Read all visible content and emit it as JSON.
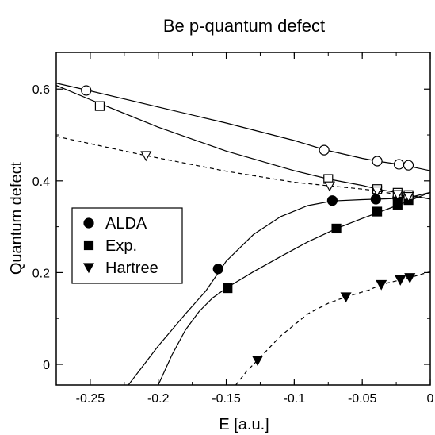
{
  "chart_data": {
    "type": "scatter",
    "title": "Be p-quantum defect",
    "xlabel": "E [a.u.]",
    "ylabel": "Quantum defect",
    "xlim": [
      -0.275,
      0.0
    ],
    "ylim": [
      -0.045,
      0.68
    ],
    "xticks": [
      -0.25,
      -0.2,
      -0.15,
      -0.1,
      -0.05,
      0
    ],
    "xtick_labels": [
      "-0.25",
      "-0.2",
      "-0.15",
      "-0.1",
      "-0.05",
      "0"
    ],
    "yticks": [
      0,
      0.2,
      0.4,
      0.6
    ],
    "ytick_labels": [
      "0",
      "0.2",
      "0.4",
      "0.6"
    ],
    "grid": false,
    "legend": {
      "position": "center-left",
      "entries": [
        {
          "label": "ALDA",
          "marker": "circle"
        },
        {
          "label": "Exp.",
          "marker": "square"
        },
        {
          "label": "Hartree",
          "marker": "triangle-down"
        }
      ]
    },
    "series": [
      {
        "name": "ALDA",
        "marker": "circle",
        "filled": true,
        "line": "solid",
        "x": [
          -0.156,
          -0.072,
          -0.04,
          -0.024,
          -0.016
        ],
        "y": [
          0.208,
          0.357,
          0.36,
          0.363,
          0.365
        ],
        "fit_x": [
          -0.222,
          -0.2,
          -0.18,
          -0.165,
          -0.15,
          -0.13,
          -0.11,
          -0.09,
          -0.072,
          -0.05,
          -0.03,
          -0.015,
          0.0
        ],
        "fit_y": [
          -0.045,
          0.04,
          0.11,
          0.16,
          0.225,
          0.283,
          0.322,
          0.346,
          0.356,
          0.359,
          0.361,
          0.364,
          0.375
        ]
      },
      {
        "name": "Exp.",
        "marker": "square",
        "filled": true,
        "line": "solid",
        "x": [
          -0.149,
          -0.069,
          -0.039,
          -0.024,
          -0.016
        ],
        "y": [
          0.166,
          0.296,
          0.333,
          0.348,
          0.358
        ],
        "fit_x": [
          -0.2,
          -0.19,
          -0.18,
          -0.17,
          -0.16,
          -0.149,
          -0.13,
          -0.11,
          -0.09,
          -0.069,
          -0.05,
          -0.03,
          -0.015,
          0.0
        ],
        "fit_y": [
          -0.045,
          0.02,
          0.075,
          0.115,
          0.145,
          0.168,
          0.202,
          0.235,
          0.267,
          0.296,
          0.318,
          0.34,
          0.357,
          0.375
        ]
      },
      {
        "name": "Hartree",
        "marker": "triangle-down",
        "filled": true,
        "line": "dashed",
        "x": [
          -0.127,
          -0.062,
          -0.036,
          -0.022,
          -0.015
        ],
        "y": [
          0.009,
          0.147,
          0.174,
          0.184,
          0.189
        ],
        "fit_x": [
          -0.143,
          -0.135,
          -0.127,
          -0.11,
          -0.09,
          -0.075,
          -0.062,
          -0.045,
          -0.036,
          -0.022,
          -0.015,
          -0.007,
          0.0
        ],
        "fit_y": [
          -0.045,
          -0.015,
          0.009,
          0.062,
          0.11,
          0.133,
          0.147,
          0.162,
          0.174,
          0.184,
          0.189,
          0.196,
          0.202
        ]
      },
      {
        "name": "",
        "marker": "circle",
        "filled": false,
        "line": "solid",
        "x": [
          -0.253,
          -0.078,
          -0.039,
          -0.023,
          -0.016
        ],
        "y": [
          0.597,
          0.467,
          0.443,
          0.436,
          0.434
        ],
        "fit_x": [
          -0.275,
          -0.25,
          -0.2,
          -0.15,
          -0.1,
          -0.078,
          -0.05,
          -0.039,
          -0.023,
          -0.016,
          0.0
        ],
        "fit_y": [
          0.613,
          0.596,
          0.561,
          0.526,
          0.488,
          0.468,
          0.449,
          0.443,
          0.436,
          0.432,
          0.422
        ]
      },
      {
        "name": "",
        "marker": "square",
        "filled": false,
        "line": "solid",
        "x": [
          -0.243,
          -0.075,
          -0.039,
          -0.024,
          -0.016
        ],
        "y": [
          0.563,
          0.404,
          0.382,
          0.374,
          0.369
        ],
        "fit_x": [
          -0.275,
          -0.25,
          -0.2,
          -0.15,
          -0.1,
          -0.075,
          -0.05,
          -0.039,
          -0.024,
          -0.016,
          0.0
        ],
        "fit_y": [
          0.608,
          0.577,
          0.517,
          0.465,
          0.422,
          0.404,
          0.39,
          0.382,
          0.374,
          0.369,
          0.36
        ]
      },
      {
        "name": "",
        "marker": "triangle-down",
        "filled": false,
        "line": "dashed",
        "x": [
          -0.209,
          -0.074,
          -0.039,
          -0.024,
          -0.016
        ],
        "y": [
          0.455,
          0.389,
          0.378,
          0.37,
          0.366
        ],
        "fit_x": [
          -0.275,
          -0.25,
          -0.209,
          -0.15,
          -0.1,
          -0.074,
          -0.05,
          -0.039,
          -0.024,
          -0.016,
          0.0
        ],
        "fit_y": [
          0.497,
          0.481,
          0.455,
          0.421,
          0.397,
          0.389,
          0.382,
          0.378,
          0.37,
          0.366,
          0.362
        ]
      }
    ]
  }
}
